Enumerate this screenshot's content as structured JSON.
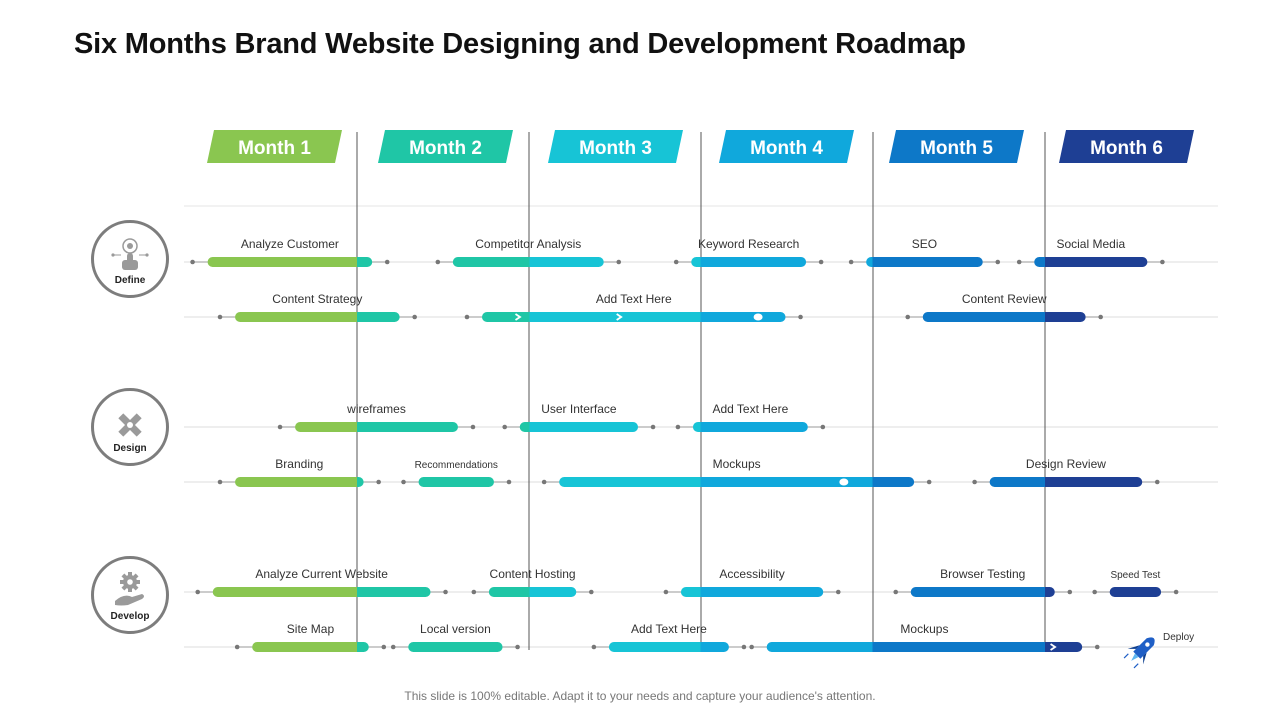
{
  "title": "Six Months Brand Website Designing and Development Roadmap",
  "footer": "This slide is 100% editable. Adapt it to your needs and capture your audience's attention.",
  "colors": {
    "month_bg": [
      "#8ac650",
      "#1fc6a6",
      "#17c4d6",
      "#10a8dc",
      "#0d78c8",
      "#1e3f94"
    ],
    "track": "#dcdcdc",
    "dot": "#777777",
    "ring": "#7d7d7d",
    "icon": "#9a9a9a"
  },
  "months": [
    "Month 1",
    "Month 2",
    "Month 3",
    "Month 4",
    "Month 5",
    "Month 6"
  ],
  "categories": [
    {
      "name": "Define",
      "icon": "hand-touch-icon"
    },
    {
      "name": "Design",
      "icon": "pencil-ruler-icon"
    },
    {
      "name": "Develop",
      "icon": "gear-hand-icon"
    }
  ],
  "tasks": [
    {
      "label": "Analyze Customer",
      "row": 0,
      "start": 0.12,
      "end": 1.08
    },
    {
      "label": "Competitor Analysis",
      "row": 0,
      "start": 1.55,
      "end": 2.43
    },
    {
      "label": "Keyword Research",
      "row": 0,
      "start": 2.94,
      "end": 3.61
    },
    {
      "label": "SEO",
      "row": 0,
      "start": 3.96,
      "end": 4.64
    },
    {
      "label": "Social Media",
      "row": 0,
      "start": 4.94,
      "end": 5.6
    },
    {
      "label": "Content Strategy",
      "row": 1,
      "start": 0.28,
      "end": 1.24
    },
    {
      "label": "Add Text Here",
      "row": 1,
      "start": 1.72,
      "end": 3.49,
      "arrows": [
        1.93,
        2.52
      ],
      "dot": 3.33
    },
    {
      "label": "Content Review",
      "row": 1,
      "start": 4.29,
      "end": 5.24
    },
    {
      "label": "wireframes",
      "row": 2,
      "start": 0.63,
      "end": 1.58
    },
    {
      "label": "User Interface",
      "row": 2,
      "start": 1.94,
      "end": 2.63
    },
    {
      "label": "Add Text Here",
      "row": 2,
      "start": 2.95,
      "end": 3.62
    },
    {
      "label": "Branding",
      "row": 3,
      "start": 0.28,
      "end": 1.03
    },
    {
      "label": "Recommendations",
      "row": 3,
      "start": 1.35,
      "end": 1.79,
      "small": true
    },
    {
      "label": "Mockups",
      "row": 3,
      "start": 2.17,
      "end": 4.24,
      "dot": 3.83
    },
    {
      "label": "Design Review",
      "row": 3,
      "start": 4.68,
      "end": 5.57
    },
    {
      "label": "Analyze Current Website",
      "row": 4,
      "start": 0.15,
      "end": 1.42
    },
    {
      "label": "Content Hosting",
      "row": 4,
      "start": 1.76,
      "end": 2.27
    },
    {
      "label": "Accessibility",
      "row": 4,
      "start": 2.88,
      "end": 3.71
    },
    {
      "label": "Browser Testing",
      "row": 4,
      "start": 4.22,
      "end": 5.06
    },
    {
      "label": "Speed Test",
      "row": 4,
      "start": 5.38,
      "end": 5.68,
      "small": true
    },
    {
      "label": "Site Map",
      "row": 5,
      "start": 0.38,
      "end": 1.06
    },
    {
      "label": "Local version",
      "row": 5,
      "start": 1.29,
      "end": 1.84
    },
    {
      "label": "Add Text Here",
      "row": 5,
      "start": 2.46,
      "end": 3.16
    },
    {
      "label": "Mockups",
      "row": 5,
      "start": 3.38,
      "end": 5.22,
      "arrows": [
        5.05
      ]
    }
  ],
  "deploy": {
    "label": "Deploy",
    "icon": "rocket-icon"
  }
}
